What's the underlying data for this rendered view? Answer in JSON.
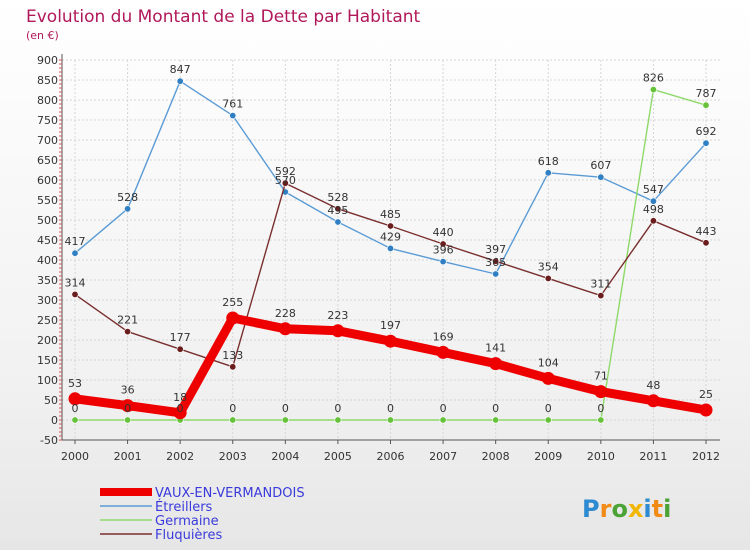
{
  "chart_data": {
    "type": "line",
    "title": "Evolution du Montant de la Dette par Habitant",
    "subtitle": "(en €)",
    "xlabel": "",
    "ylabel": "",
    "x": [
      "2000",
      "2001",
      "2002",
      "2003",
      "2004",
      "2005",
      "2006",
      "2007",
      "2008",
      "2009",
      "2010",
      "2011",
      "2012"
    ],
    "ylim": [
      -50,
      900
    ],
    "yticks": [
      -50,
      0,
      50,
      100,
      150,
      200,
      250,
      300,
      350,
      400,
      450,
      500,
      550,
      600,
      650,
      700,
      750,
      800,
      850,
      900
    ],
    "grid": true,
    "legend_position": "bottom-left",
    "series": [
      {
        "name": "Étreillers",
        "color": "#5b9bd5",
        "marker_color": "#2f7fc2",
        "values": [
          417,
          528,
          847,
          761,
          570,
          495,
          429,
          396,
          365,
          618,
          607,
          547,
          692
        ],
        "labels": [
          "417",
          "528",
          "847",
          "761",
          "570",
          "495",
          "429",
          "396",
          "365",
          "618",
          "607",
          "547",
          "692"
        ]
      },
      {
        "name": "Germaine",
        "color": "#8fd96a",
        "marker_color": "#66c23a",
        "values": [
          0,
          0,
          0,
          0,
          0,
          0,
          0,
          0,
          0,
          0,
          0,
          826,
          787
        ],
        "labels": [
          "0",
          "0",
          "0",
          "0",
          "0",
          "0",
          "0",
          "0",
          "0",
          "0",
          "0",
          "826",
          "787"
        ]
      },
      {
        "name": "Fluquières",
        "color": "#7a2f2f",
        "marker_color": "#6b1d1d",
        "values": [
          314,
          221,
          177,
          133,
          592,
          528,
          485,
          440,
          397,
          354,
          311,
          498,
          443
        ],
        "labels": [
          "314",
          "221",
          "177",
          "133",
          "592",
          "528",
          "485",
          "440",
          "397",
          "354",
          "311",
          "498",
          "443"
        ]
      },
      {
        "name": "VAUX-EN-VERMANDOIS",
        "color": "#ee0000",
        "marker_color": "#ee0000",
        "values": [
          53,
          36,
          18,
          255,
          228,
          223,
          197,
          169,
          141,
          104,
          71,
          48,
          25
        ],
        "labels": [
          "53",
          "36",
          "18",
          "255",
          "228",
          "223",
          "197",
          "169",
          "141",
          "104",
          "71",
          "48",
          "25"
        ]
      }
    ],
    "legend": [
      {
        "name": "VAUX-EN-VERMANDOIS",
        "color": "#ee0000",
        "thick": true
      },
      {
        "name": "Étreillers",
        "color": "#5b9bd5",
        "thick": false
      },
      {
        "name": "Germaine",
        "color": "#8fd96a",
        "thick": false
      },
      {
        "name": "Fluquières",
        "color": "#7a2f2f",
        "thick": false
      }
    ]
  },
  "logo": {
    "letters": [
      "P",
      "r",
      "o",
      "x",
      "i",
      "t",
      "i"
    ],
    "colors": [
      "#2e8bd1",
      "#f28a16",
      "#4aa334",
      "#f2b705",
      "#2e8bd1",
      "#f28a16",
      "#4aa334"
    ]
  }
}
